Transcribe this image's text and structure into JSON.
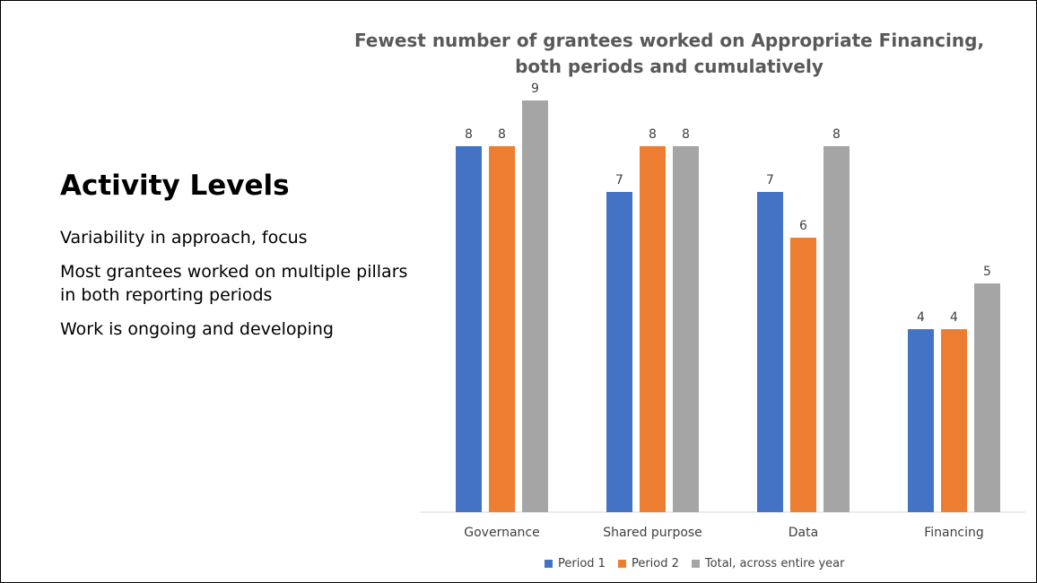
{
  "slide": {
    "heading": "Activity Levels",
    "bullets": [
      "Variability in approach, focus",
      "Most grantees worked on multiple pillars in both reporting periods",
      "Work is ongoing and developing"
    ]
  },
  "chart_data": {
    "type": "bar",
    "title": "Fewest number of grantees worked on Appropriate Financing, both periods and cumulatively",
    "categories": [
      "Governance",
      "Shared purpose",
      "Data",
      "Financing"
    ],
    "series": [
      {
        "name": "Period 1",
        "values": [
          8,
          7,
          7,
          4
        ],
        "color": "#4472c4"
      },
      {
        "name": "Period 2",
        "values": [
          8,
          8,
          6,
          4
        ],
        "color": "#ed7d31"
      },
      {
        "name": "Total, across entire year",
        "values": [
          9,
          8,
          8,
          5
        ],
        "color": "#a5a5a5"
      }
    ],
    "ylim": [
      0,
      9
    ],
    "grid": false,
    "data_labels": true,
    "legend_position": "bottom"
  }
}
